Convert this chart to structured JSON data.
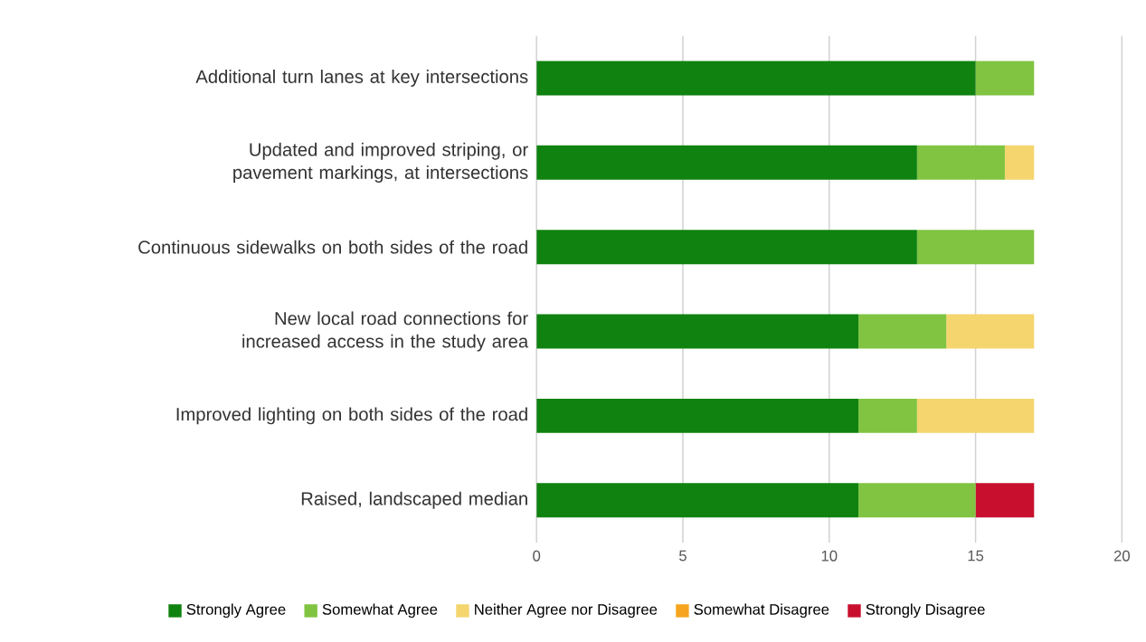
{
  "chart_data": {
    "type": "bar",
    "orientation": "horizontal",
    "stacked": true,
    "categories": [
      "Additional turn lanes at key intersections",
      "Updated and improved striping, or pavement markings, at intersections",
      "Continuous sidewalks on both sides of the road",
      "New local road connections for increased access in the study area",
      "Improved lighting on both sides of the road",
      "Raised, landscaped median"
    ],
    "series": [
      {
        "name": "Strongly Agree",
        "color": "#0f820f",
        "values": [
          15,
          13,
          13,
          11,
          11,
          11
        ]
      },
      {
        "name": "Somewhat Agree",
        "color": "#80c441",
        "values": [
          2,
          3,
          4,
          3,
          2,
          4
        ]
      },
      {
        "name": "Neither Agree nor Disagree",
        "color": "#f4d56e",
        "values": [
          0,
          1,
          0,
          3,
          4,
          0
        ]
      },
      {
        "name": "Somewhat Disagree",
        "color": "#f5a51f",
        "values": [
          0,
          0,
          0,
          0,
          0,
          0
        ]
      },
      {
        "name": "Strongly Disagree",
        "color": "#c8102e",
        "values": [
          0,
          0,
          0,
          0,
          0,
          2
        ]
      }
    ],
    "xlim": [
      0,
      20
    ],
    "xticks": [
      0,
      5,
      10,
      15,
      20
    ],
    "grid": "x",
    "legend": "bottom"
  }
}
